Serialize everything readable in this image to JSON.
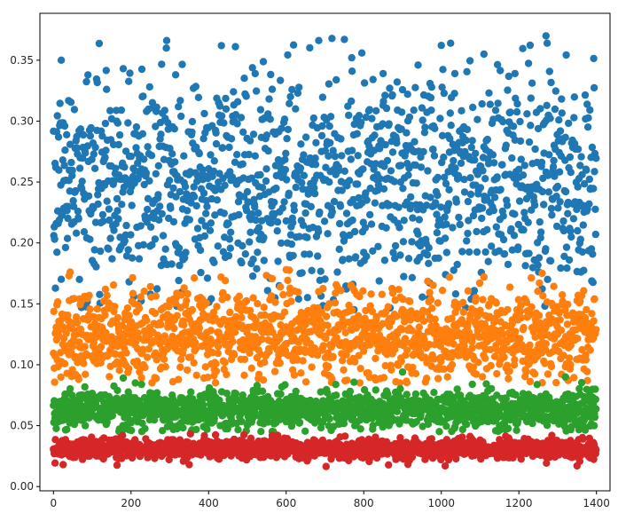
{
  "chart_data": {
    "type": "scatter",
    "title": "",
    "xlabel": "",
    "ylabel": "",
    "xlim": [
      -35,
      1435
    ],
    "ylim": [
      -0.0035,
      0.3885
    ],
    "x_ticks": [
      0,
      200,
      400,
      600,
      800,
      1000,
      1200,
      1400
    ],
    "x_tick_labels": [
      "0",
      "200",
      "400",
      "600",
      "800",
      "1000",
      "1200",
      "1400"
    ],
    "y_ticks": [
      0.0,
      0.05,
      0.1,
      0.15,
      0.2,
      0.25,
      0.3,
      0.35
    ],
    "y_tick_labels": [
      "0.00",
      "0.05",
      "0.10",
      "0.15",
      "0.20",
      "0.25",
      "0.30",
      "0.35"
    ],
    "grid": false,
    "legend": "none",
    "series": [
      {
        "color": "#1f77b4",
        "x_range": [
          0,
          1399
        ],
        "points_per_series": 1400,
        "center": 0.25,
        "spread": 0.045,
        "clip": [
          0.145,
          0.37
        ],
        "highlights": [
          [
            20,
            0.35
          ],
          [
            1270,
            0.37
          ],
          [
            1110,
            0.355
          ],
          [
            180,
            0.343
          ],
          [
            940,
            0.346
          ],
          [
            770,
            0.341
          ],
          [
            1035,
            0.339
          ],
          [
            1190,
            0.339
          ],
          [
            520,
            0.339
          ],
          [
            315,
            0.338
          ],
          [
            850,
            0.339
          ]
        ]
      },
      {
        "color": "#ff7f0e",
        "x_range": [
          0,
          1399
        ],
        "points_per_series": 1400,
        "center": 0.125,
        "spread": 0.018,
        "clip": [
          0.085,
          0.178
        ],
        "highlights": [
          [
            600,
            0.178
          ],
          [
            40,
            0.173
          ],
          [
            1260,
            0.175
          ]
        ]
      },
      {
        "color": "#2ca02c",
        "x_range": [
          0,
          1399
        ],
        "points_per_series": 1400,
        "center": 0.063,
        "spread": 0.008,
        "clip": [
          0.045,
          0.094
        ],
        "highlights": [
          [
            900,
            0.094
          ],
          [
            1320,
            0.09
          ],
          [
            180,
            0.089
          ]
        ]
      },
      {
        "color": "#d62728",
        "x_range": [
          0,
          1399
        ],
        "points_per_series": 1400,
        "center": 0.031,
        "spread": 0.004,
        "clip": [
          0.016,
          0.044
        ],
        "highlights": [
          [
            1010,
            0.017
          ],
          [
            1350,
            0.017
          ],
          [
            25,
            0.018
          ],
          [
            350,
            0.018
          ]
        ]
      }
    ]
  }
}
